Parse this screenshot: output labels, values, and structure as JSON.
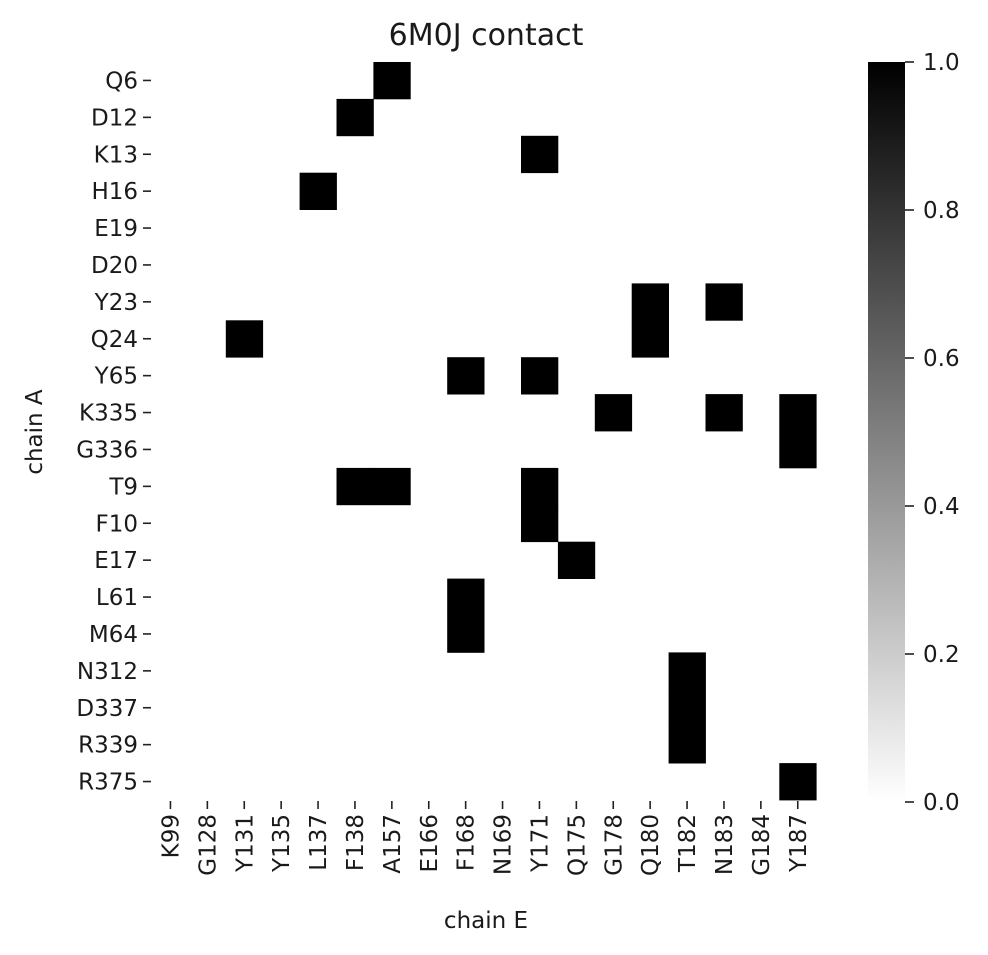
{
  "chart_data": {
    "type": "heatmap",
    "title": "6M0J contact",
    "xlabel": "chain E",
    "ylabel": "chain A",
    "x_categories": [
      "K99",
      "G128",
      "Y131",
      "Y135",
      "L137",
      "F138",
      "A157",
      "E166",
      "F168",
      "N169",
      "Y171",
      "Q175",
      "G178",
      "Q180",
      "T182",
      "N183",
      "G184",
      "Y187"
    ],
    "y_categories": [
      "Q6",
      "D12",
      "K13",
      "H16",
      "E19",
      "D20",
      "Y23",
      "Q24",
      "Y65",
      "K335",
      "G336",
      "T9",
      "F10",
      "E17",
      "L61",
      "M64",
      "N312",
      "D337",
      "R339",
      "R375"
    ],
    "values": [
      [
        0,
        0,
        0,
        0,
        0,
        0,
        1,
        0,
        0,
        0,
        0,
        0,
        0,
        0,
        0,
        0,
        0,
        0
      ],
      [
        0,
        0,
        0,
        0,
        0,
        1,
        0,
        0,
        0,
        0,
        0,
        0,
        0,
        0,
        0,
        0,
        0,
        0
      ],
      [
        0,
        0,
        0,
        0,
        0,
        0,
        0,
        0,
        0,
        0,
        1,
        0,
        0,
        0,
        0,
        0,
        0,
        0
      ],
      [
        0,
        0,
        0,
        0,
        1,
        0,
        0,
        0,
        0,
        0,
        0,
        0,
        0,
        0,
        0,
        0,
        0,
        0
      ],
      [
        0,
        0,
        0,
        0,
        0,
        0,
        0,
        0,
        0,
        0,
        0,
        0,
        0,
        0,
        0,
        0,
        0,
        0
      ],
      [
        0,
        0,
        0,
        0,
        0,
        0,
        0,
        0,
        0,
        0,
        0,
        0,
        0,
        0,
        0,
        0,
        0,
        0
      ],
      [
        0,
        0,
        0,
        0,
        0,
        0,
        0,
        0,
        0,
        0,
        0,
        0,
        0,
        1,
        0,
        1,
        0,
        0
      ],
      [
        0,
        0,
        1,
        0,
        0,
        0,
        0,
        0,
        0,
        0,
        0,
        0,
        0,
        1,
        0,
        0,
        0,
        0
      ],
      [
        0,
        0,
        0,
        0,
        0,
        0,
        0,
        0,
        1,
        0,
        1,
        0,
        0,
        0,
        0,
        0,
        0,
        0
      ],
      [
        0,
        0,
        0,
        0,
        0,
        0,
        0,
        0,
        0,
        0,
        0,
        0,
        1,
        0,
        0,
        1,
        0,
        1
      ],
      [
        0,
        0,
        0,
        0,
        0,
        0,
        0,
        0,
        0,
        0,
        0,
        0,
        0,
        0,
        0,
        0,
        0,
        1
      ],
      [
        0,
        0,
        0,
        0,
        0,
        1,
        1,
        0,
        0,
        0,
        1,
        0,
        0,
        0,
        0,
        0,
        0,
        0
      ],
      [
        0,
        0,
        0,
        0,
        0,
        0,
        0,
        0,
        0,
        0,
        1,
        0,
        0,
        0,
        0,
        0,
        0,
        0
      ],
      [
        0,
        0,
        0,
        0,
        0,
        0,
        0,
        0,
        0,
        0,
        0,
        1,
        0,
        0,
        0,
        0,
        0,
        0
      ],
      [
        0,
        0,
        0,
        0,
        0,
        0,
        0,
        0,
        1,
        0,
        0,
        0,
        0,
        0,
        0,
        0,
        0,
        0
      ],
      [
        0,
        0,
        0,
        0,
        0,
        0,
        0,
        0,
        1,
        0,
        0,
        0,
        0,
        0,
        0,
        0,
        0,
        0
      ],
      [
        0,
        0,
        0,
        0,
        0,
        0,
        0,
        0,
        0,
        0,
        0,
        0,
        0,
        0,
        1,
        0,
        0,
        0
      ],
      [
        0,
        0,
        0,
        0,
        0,
        0,
        0,
        0,
        0,
        0,
        0,
        0,
        0,
        0,
        1,
        0,
        0,
        0
      ],
      [
        0,
        0,
        0,
        0,
        0,
        0,
        0,
        0,
        0,
        0,
        0,
        0,
        0,
        0,
        1,
        0,
        0,
        0
      ],
      [
        0,
        0,
        0,
        0,
        0,
        0,
        0,
        0,
        0,
        0,
        0,
        0,
        0,
        0,
        0,
        0,
        0,
        1
      ]
    ],
    "colorscale": {
      "min": 0.0,
      "max": 1.0,
      "low_color": "#ffffff",
      "high_color": "#000000"
    },
    "colorbar_ticks": [
      "0.0",
      "0.2",
      "0.4",
      "0.6",
      "0.8",
      "1.0"
    ],
    "grid": false,
    "legend": "colorbar-right"
  }
}
